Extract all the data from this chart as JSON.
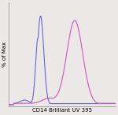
{
  "title": "",
  "xlabel": "CD14 Brilliant UV 395",
  "ylabel": "% of Max",
  "background_color": "#ede8e8",
  "plot_bg_color": "#ede8e8",
  "blue_color": "#6666cc",
  "pink_color": "#cc55bb",
  "xlim": [
    0,
    1
  ],
  "ylim": [
    -0.02,
    1.15
  ],
  "xlabel_fontsize": 5.0,
  "ylabel_fontsize": 5.0,
  "line_width": 0.8
}
